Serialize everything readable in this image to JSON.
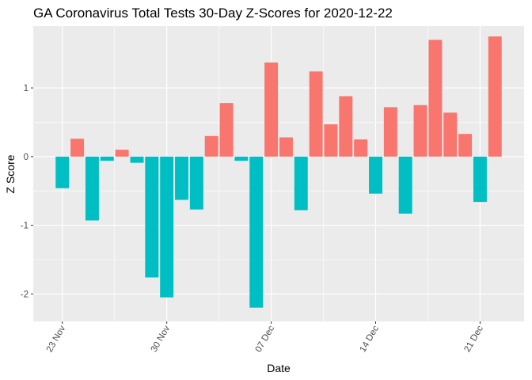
{
  "chart_data": {
    "type": "bar",
    "title": "GA Coronavirus Total Tests 30-Day Z-Scores for 2020-12-22",
    "xlabel": "Date",
    "ylabel": "Z Score",
    "x_ticks": [
      "23 Nov",
      "30 Nov",
      "07 Dec",
      "14 Dec",
      "21 Dec"
    ],
    "y_ticks": [
      "-2",
      "-1",
      "0",
      "1"
    ],
    "ylim": [
      -2.4,
      1.9
    ],
    "grid": true,
    "legend": "none",
    "colors": {
      "positive": "#F8766D",
      "negative": "#00BFC4",
      "panel": "#EBEBEB",
      "grid": "#FFFFFF"
    },
    "categories": [
      "2020-11-23",
      "2020-11-24",
      "2020-11-25",
      "2020-11-26",
      "2020-11-27",
      "2020-11-28",
      "2020-11-29",
      "2020-11-30",
      "2020-12-01",
      "2020-12-02",
      "2020-12-03",
      "2020-12-04",
      "2020-12-05",
      "2020-12-06",
      "2020-12-07",
      "2020-12-08",
      "2020-12-09",
      "2020-12-10",
      "2020-12-11",
      "2020-12-12",
      "2020-12-13",
      "2020-12-14",
      "2020-12-15",
      "2020-12-16",
      "2020-12-17",
      "2020-12-18",
      "2020-12-19",
      "2020-12-20",
      "2020-12-21",
      "2020-12-22"
    ],
    "values": [
      -0.46,
      0.26,
      -0.93,
      -0.06,
      0.1,
      -0.09,
      -1.76,
      -2.05,
      -0.63,
      -0.77,
      0.3,
      0.78,
      -0.06,
      -2.2,
      1.37,
      0.28,
      -0.78,
      1.24,
      0.47,
      0.88,
      0.25,
      -0.54,
      0.72,
      -0.83,
      0.75,
      1.7,
      0.64,
      0.33,
      -0.66,
      1.75
    ]
  }
}
